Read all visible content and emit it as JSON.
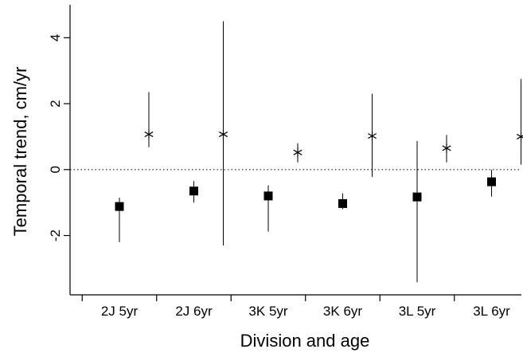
{
  "chart_data": {
    "type": "scatter",
    "xlabel": "Division and age",
    "ylabel": "Temporal trend, cm/yr",
    "categories": [
      "2J 5yr",
      "2J 6yr",
      "3K 5yr",
      "3K 6yr",
      "3L 5yr",
      "3L 6yr"
    ],
    "ylim": [
      -3.8,
      5.0
    ],
    "yticks": [
      -2,
      0,
      2,
      4
    ],
    "reference_line": 0,
    "grid": false,
    "legend": "none",
    "series": [
      {
        "marker": "star",
        "values": [
          1.07,
          1.07,
          0.52,
          1.02,
          0.65,
          1.0
        ],
        "lower": [
          0.68,
          -2.3,
          0.22,
          -0.22,
          0.22,
          0.15
        ],
        "upper": [
          2.35,
          4.5,
          0.8,
          2.3,
          1.05,
          2.75
        ]
      },
      {
        "marker": "square",
        "values": [
          -1.12,
          -0.65,
          -0.8,
          -1.03,
          -0.83,
          -0.37
        ],
        "lower": [
          -2.2,
          -1.0,
          -1.88,
          -1.2,
          -3.42,
          -0.82
        ],
        "upper": [
          -0.85,
          -0.35,
          -0.48,
          -0.72,
          0.87,
          0.0
        ]
      }
    ]
  }
}
